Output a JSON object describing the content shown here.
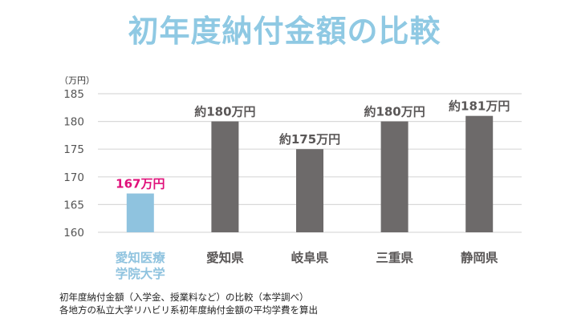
{
  "title": "初年度納付金額の比較",
  "colors": {
    "title": "#8fc9e3",
    "highlight_bar": "#8fc3df",
    "other_bar": "#6d6a6a",
    "highlight_label": "#e0107a",
    "other_label": "#5a5757",
    "grid": "#d9d9d9",
    "axis_text": "#555555"
  },
  "chart_data": {
    "type": "bar",
    "unit_label": "（万円）",
    "ylim": [
      160,
      185
    ],
    "yticks": [
      160,
      165,
      170,
      175,
      180,
      185
    ],
    "grid": true,
    "categories": [
      "愛知医療\n学院大学",
      "愛知県",
      "岐阜県",
      "三重県",
      "静岡県"
    ],
    "values": [
      167,
      180,
      175,
      180,
      181
    ],
    "data_labels": [
      "167万円",
      "約180万円",
      "約175万円",
      "約180万円",
      "約181万円"
    ],
    "highlight_index": 0
  },
  "footnotes": [
    "初年度納付金額（入学金、授業料など）の比較（本学調べ）",
    "各地方の私立大学リハビリ系初年度納付金額の平均学費を算出"
  ]
}
